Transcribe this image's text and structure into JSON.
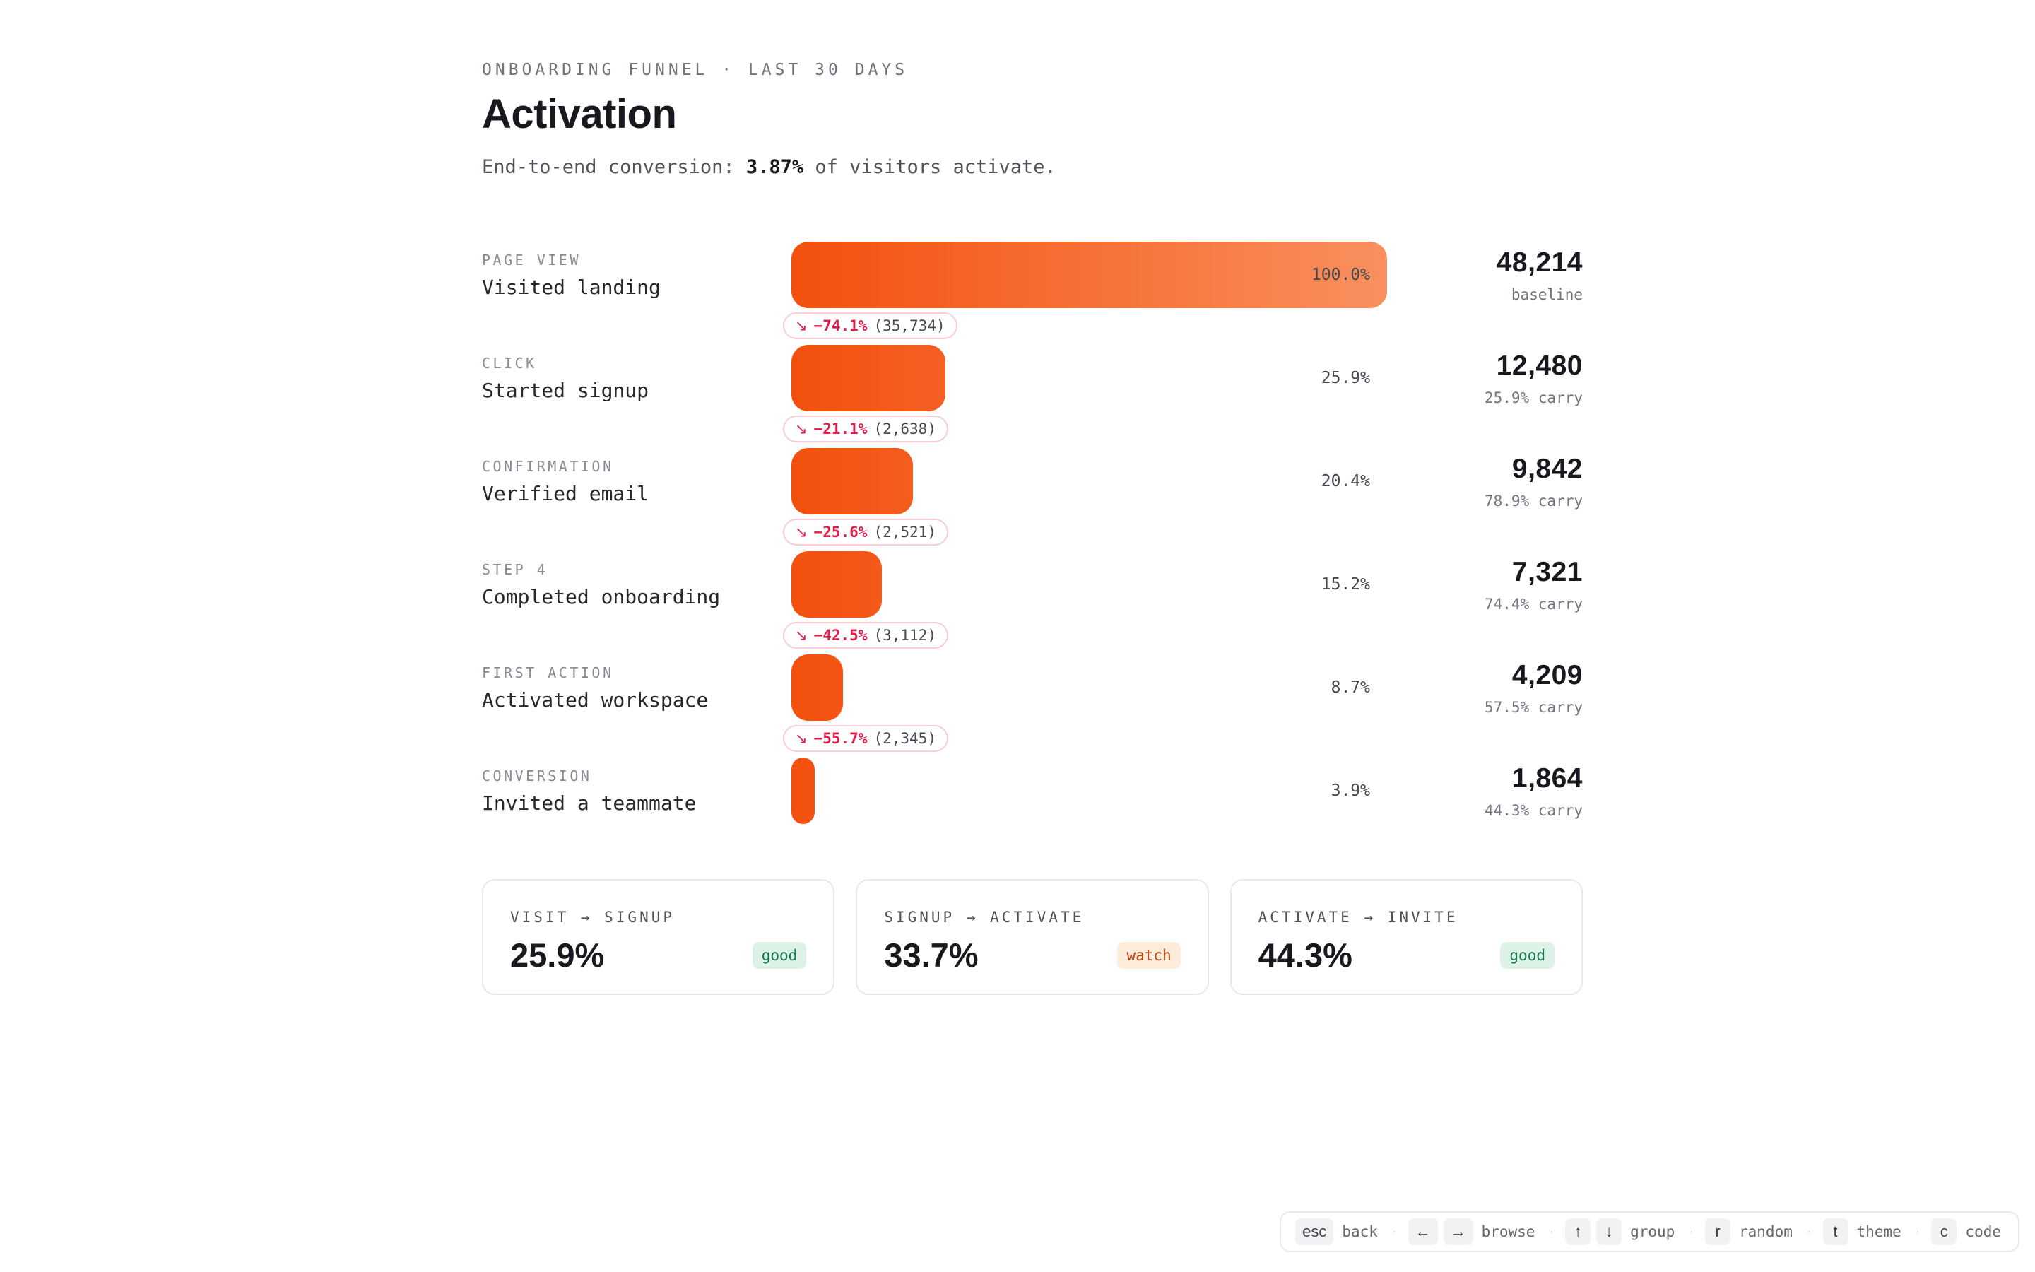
{
  "header": {
    "eyebrow": "ONBOARDING FUNNEL · LAST 30 DAYS",
    "title": "Activation",
    "subtitle_prefix": "End-to-end conversion: ",
    "subtitle_value": "3.87%",
    "subtitle_suffix": " of visitors activate."
  },
  "funnel": {
    "drop_arrow": "↘",
    "rows": [
      {
        "type": "PAGE VIEW",
        "name": "Visited landing",
        "pct": 100.0,
        "pct_label": "100.0%",
        "value": "48,214",
        "sub": "baseline",
        "drop_pct": "−74.1%",
        "drop_count": "(35,734)"
      },
      {
        "type": "CLICK",
        "name": "Started signup",
        "pct": 25.9,
        "pct_label": "25.9%",
        "value": "12,480",
        "sub": "25.9% carry",
        "drop_pct": "−21.1%",
        "drop_count": "(2,638)"
      },
      {
        "type": "CONFIRMATION",
        "name": "Verified email",
        "pct": 20.4,
        "pct_label": "20.4%",
        "value": "9,842",
        "sub": "78.9% carry",
        "drop_pct": "−25.6%",
        "drop_count": "(2,521)"
      },
      {
        "type": "STEP 4",
        "name": "Completed onboarding",
        "pct": 15.2,
        "pct_label": "15.2%",
        "value": "7,321",
        "sub": "74.4% carry",
        "drop_pct": "−42.5%",
        "drop_count": "(3,112)"
      },
      {
        "type": "FIRST ACTION",
        "name": "Activated workspace",
        "pct": 8.7,
        "pct_label": "8.7%",
        "value": "4,209",
        "sub": "57.5% carry",
        "drop_pct": "−55.7%",
        "drop_count": "(2,345)"
      },
      {
        "type": "CONVERSION",
        "name": "Invited a teammate",
        "pct": 3.9,
        "pct_label": "3.9%",
        "value": "1,864",
        "sub": "44.3% carry",
        "drop_pct": null,
        "drop_count": null
      }
    ]
  },
  "cards": [
    {
      "label": "VISIT → SIGNUP",
      "value": "25.9%",
      "badge": "good",
      "status": "good"
    },
    {
      "label": "SIGNUP → ACTIVATE",
      "value": "33.7%",
      "badge": "watch",
      "status": "watch"
    },
    {
      "label": "ACTIVATE → INVITE",
      "value": "44.3%",
      "badge": "good",
      "status": "good"
    }
  ],
  "hints": [
    {
      "keys": [
        "esc"
      ],
      "label": "back"
    },
    {
      "keys": [
        "←",
        "→"
      ],
      "label": "browse"
    },
    {
      "keys": [
        "↑",
        "↓"
      ],
      "label": "group"
    },
    {
      "keys": [
        "r"
      ],
      "label": "random"
    },
    {
      "keys": [
        "t"
      ],
      "label": "theme"
    },
    {
      "keys": [
        "c"
      ],
      "label": "code"
    }
  ],
  "colors": {
    "bar_start": "#f3500e",
    "bar_end": "#f9905f",
    "drop_accent": "#e11d48",
    "good_fg": "#0f7a4a",
    "good_bg": "#def1e6",
    "watch_fg": "#c2410c",
    "watch_bg": "#fcecda"
  },
  "chart_data": {
    "type": "bar",
    "title": "Activation",
    "subtitle": "End-to-end conversion: 3.87% of visitors activate.",
    "orientation": "horizontal",
    "categories": [
      "Visited landing",
      "Started signup",
      "Verified email",
      "Completed onboarding",
      "Activated workspace",
      "Invited a teammate"
    ],
    "stage_types": [
      "PAGE VIEW",
      "CLICK",
      "CONFIRMATION",
      "STEP 4",
      "FIRST ACTION",
      "CONVERSION"
    ],
    "values": [
      48214,
      12480,
      9842,
      7321,
      4209,
      1864
    ],
    "pct_of_baseline": [
      100.0,
      25.9,
      20.4,
      15.2,
      8.7,
      3.9
    ],
    "carry_rates": [
      "baseline",
      "25.9% carry",
      "78.9% carry",
      "74.4% carry",
      "57.5% carry",
      "44.3% carry"
    ],
    "drops": [
      {
        "pct": -74.1,
        "count": 35734
      },
      {
        "pct": -21.1,
        "count": 2638
      },
      {
        "pct": -25.6,
        "count": 2521
      },
      {
        "pct": -42.5,
        "count": 3112
      },
      {
        "pct": -55.7,
        "count": 2345
      }
    ],
    "xlim": [
      0,
      100
    ],
    "grid": false,
    "legend": false
  }
}
